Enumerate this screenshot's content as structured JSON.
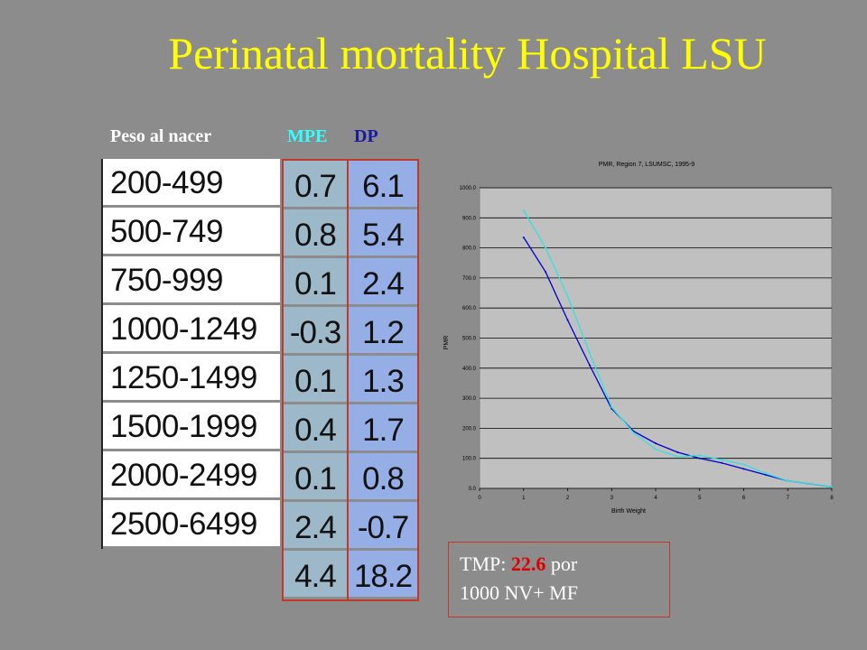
{
  "title": "Perinatal mortality Hospital LSU",
  "headers": {
    "peso": "Peso al nacer",
    "mpe": "MPE",
    "dp": "DP"
  },
  "table": {
    "weights": [
      "200-499",
      "500-749",
      "750-999",
      "1000-1249",
      "1250-1499",
      "1500-1999",
      "2000-2499",
      "2500-6499"
    ],
    "mpe": [
      "0.7",
      "0.8",
      "0.1",
      "-0.3",
      "0.1",
      "0.4",
      "0.1",
      "2.4",
      "4.4"
    ],
    "dp": [
      "6.1",
      "5.4",
      "2.4",
      "1.2",
      "1.3",
      "1.7",
      "0.8",
      "-0.7",
      "18.2"
    ]
  },
  "tmp": {
    "label": "TMP:",
    "value": "22.6",
    "unit": "por",
    "line2": "1000 NV+ MF"
  },
  "colors": {
    "title": "#ffff00",
    "mpe_header": "#33ffff",
    "dp_header": "#1a1aa0",
    "series_blue": "#0000cc",
    "series_cyan": "#33e0e0",
    "tmp_value": "#e00000",
    "plot_bg": "#c0c0c0"
  },
  "chart_data": {
    "type": "line",
    "title": "PMR, Region 7, LSUMSC, 1995-9",
    "xlabel": "Birth Weight",
    "ylabel": "PMR",
    "xlim": [
      0,
      8
    ],
    "ylim": [
      0,
      1000
    ],
    "x_ticks": [
      "0",
      "1",
      "2",
      "3",
      "4",
      "5",
      "6",
      "7",
      "8"
    ],
    "y_ticks": [
      "0.0",
      "100.0",
      "200.0",
      "300.0",
      "400.0",
      "500.0",
      "600.0",
      "700.0",
      "800.0",
      "900.0",
      "1000.0"
    ],
    "grid": true,
    "series": [
      {
        "color": "#0000cc",
        "x": [
          1,
          1.5,
          2,
          2.5,
          3,
          3.5,
          4,
          4.5,
          5,
          5.5,
          6,
          6.5,
          7,
          7.5,
          8
        ],
        "y": [
          835,
          720,
          560,
          410,
          265,
          190,
          150,
          120,
          100,
          85,
          65,
          45,
          25,
          15,
          5
        ]
      },
      {
        "color": "#33e0e0",
        "x": [
          1,
          1.5,
          2,
          2.5,
          3,
          3.5,
          4,
          4.5,
          5,
          5.5,
          6,
          6.5,
          7,
          7.5,
          8
        ],
        "y": [
          925,
          800,
          640,
          450,
          270,
          185,
          130,
          105,
          110,
          95,
          80,
          50,
          25,
          15,
          5
        ]
      }
    ]
  }
}
